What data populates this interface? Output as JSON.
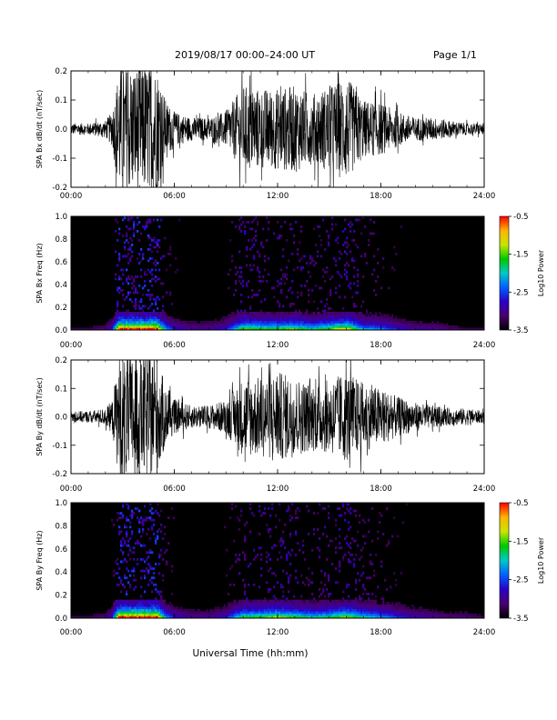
{
  "header": {
    "title": "2019/08/17  00:00–24:00 UT",
    "page": "Page 1/1"
  },
  "x_axis": {
    "title": "Universal Time (hh:mm)",
    "ticks": [
      "00:00",
      "06:00",
      "12:00",
      "18:00",
      "24:00"
    ],
    "range_hours": [
      0,
      24
    ]
  },
  "colorbar": {
    "label": "Log10 Power",
    "ticks": [
      "-0.5",
      "-1.5",
      "-2.5",
      "-3.5"
    ],
    "range": [
      -3.5,
      -0.5
    ],
    "colors": [
      "#000000",
      "#4a006e",
      "#2a00c8",
      "#0060ff",
      "#00c8c8",
      "#00c800",
      "#c8e600",
      "#ffb400",
      "#ff0000"
    ]
  },
  "chart_data": [
    {
      "type": "line",
      "panel": "SPA Bx dB/dt",
      "ylabel": "SPA Bx dB/dt (nT/sec)",
      "yticks": [
        "0.2",
        "0.1",
        "0.0",
        "-0.1",
        "-0.2"
      ],
      "ylim": [
        -0.2,
        0.2
      ],
      "x": [
        0,
        1,
        2,
        2.4,
        2.8,
        3.0,
        3.5,
        4.0,
        4.5,
        5.0,
        5.5,
        6.0,
        7.0,
        8.0,
        9.0,
        10.0,
        11.0,
        12.0,
        13.0,
        14.0,
        15.0,
        16.0,
        17.0,
        18.0,
        19.0,
        20.0,
        21.0,
        22.0,
        23.0,
        24.0
      ],
      "envelope": [
        0.02,
        0.02,
        0.03,
        0.06,
        0.22,
        0.22,
        0.22,
        0.22,
        0.22,
        0.22,
        0.1,
        0.06,
        0.04,
        0.04,
        0.06,
        0.15,
        0.14,
        0.14,
        0.15,
        0.12,
        0.15,
        0.18,
        0.1,
        0.09,
        0.06,
        0.04,
        0.04,
        0.03,
        0.02,
        0.02
      ]
    },
    {
      "type": "heatmap",
      "panel": "SPA Bx spectrogram",
      "ylabel": "SPA Bx Freq (Hz)",
      "yticks": [
        "1.0",
        "0.8",
        "0.6",
        "0.4",
        "0.2",
        "0.0"
      ],
      "ylim": [
        0,
        1.0
      ],
      "zlim": [
        -3.5,
        -0.5
      ]
    },
    {
      "type": "line",
      "panel": "SPA By dB/dt",
      "ylabel": "SPA By dB/dt (nT/sec)",
      "yticks": [
        "0.2",
        "0.1",
        "0.0",
        "-0.1",
        "-0.2"
      ],
      "ylim": [
        -0.2,
        0.2
      ],
      "x": [
        0,
        1,
        2,
        2.4,
        2.8,
        3.0,
        3.5,
        4.0,
        4.5,
        5.0,
        5.5,
        6.0,
        7.0,
        8.0,
        9.0,
        10.0,
        11.0,
        12.0,
        13.0,
        14.0,
        15.0,
        16.0,
        17.0,
        18.0,
        19.0,
        20.0,
        21.0,
        22.0,
        23.0,
        24.0
      ],
      "envelope": [
        0.02,
        0.02,
        0.03,
        0.06,
        0.22,
        0.22,
        0.22,
        0.22,
        0.22,
        0.22,
        0.1,
        0.06,
        0.04,
        0.04,
        0.06,
        0.14,
        0.14,
        0.16,
        0.14,
        0.12,
        0.13,
        0.16,
        0.12,
        0.1,
        0.07,
        0.05,
        0.04,
        0.03,
        0.03,
        0.02
      ]
    },
    {
      "type": "heatmap",
      "panel": "SPA By spectrogram",
      "ylabel": "SPA By Freq (Hz)",
      "yticks": [
        "1.0",
        "0.8",
        "0.6",
        "0.4",
        "0.2",
        "0.0"
      ],
      "ylim": [
        0,
        1.0
      ],
      "zlim": [
        -3.5,
        -0.5
      ]
    }
  ]
}
